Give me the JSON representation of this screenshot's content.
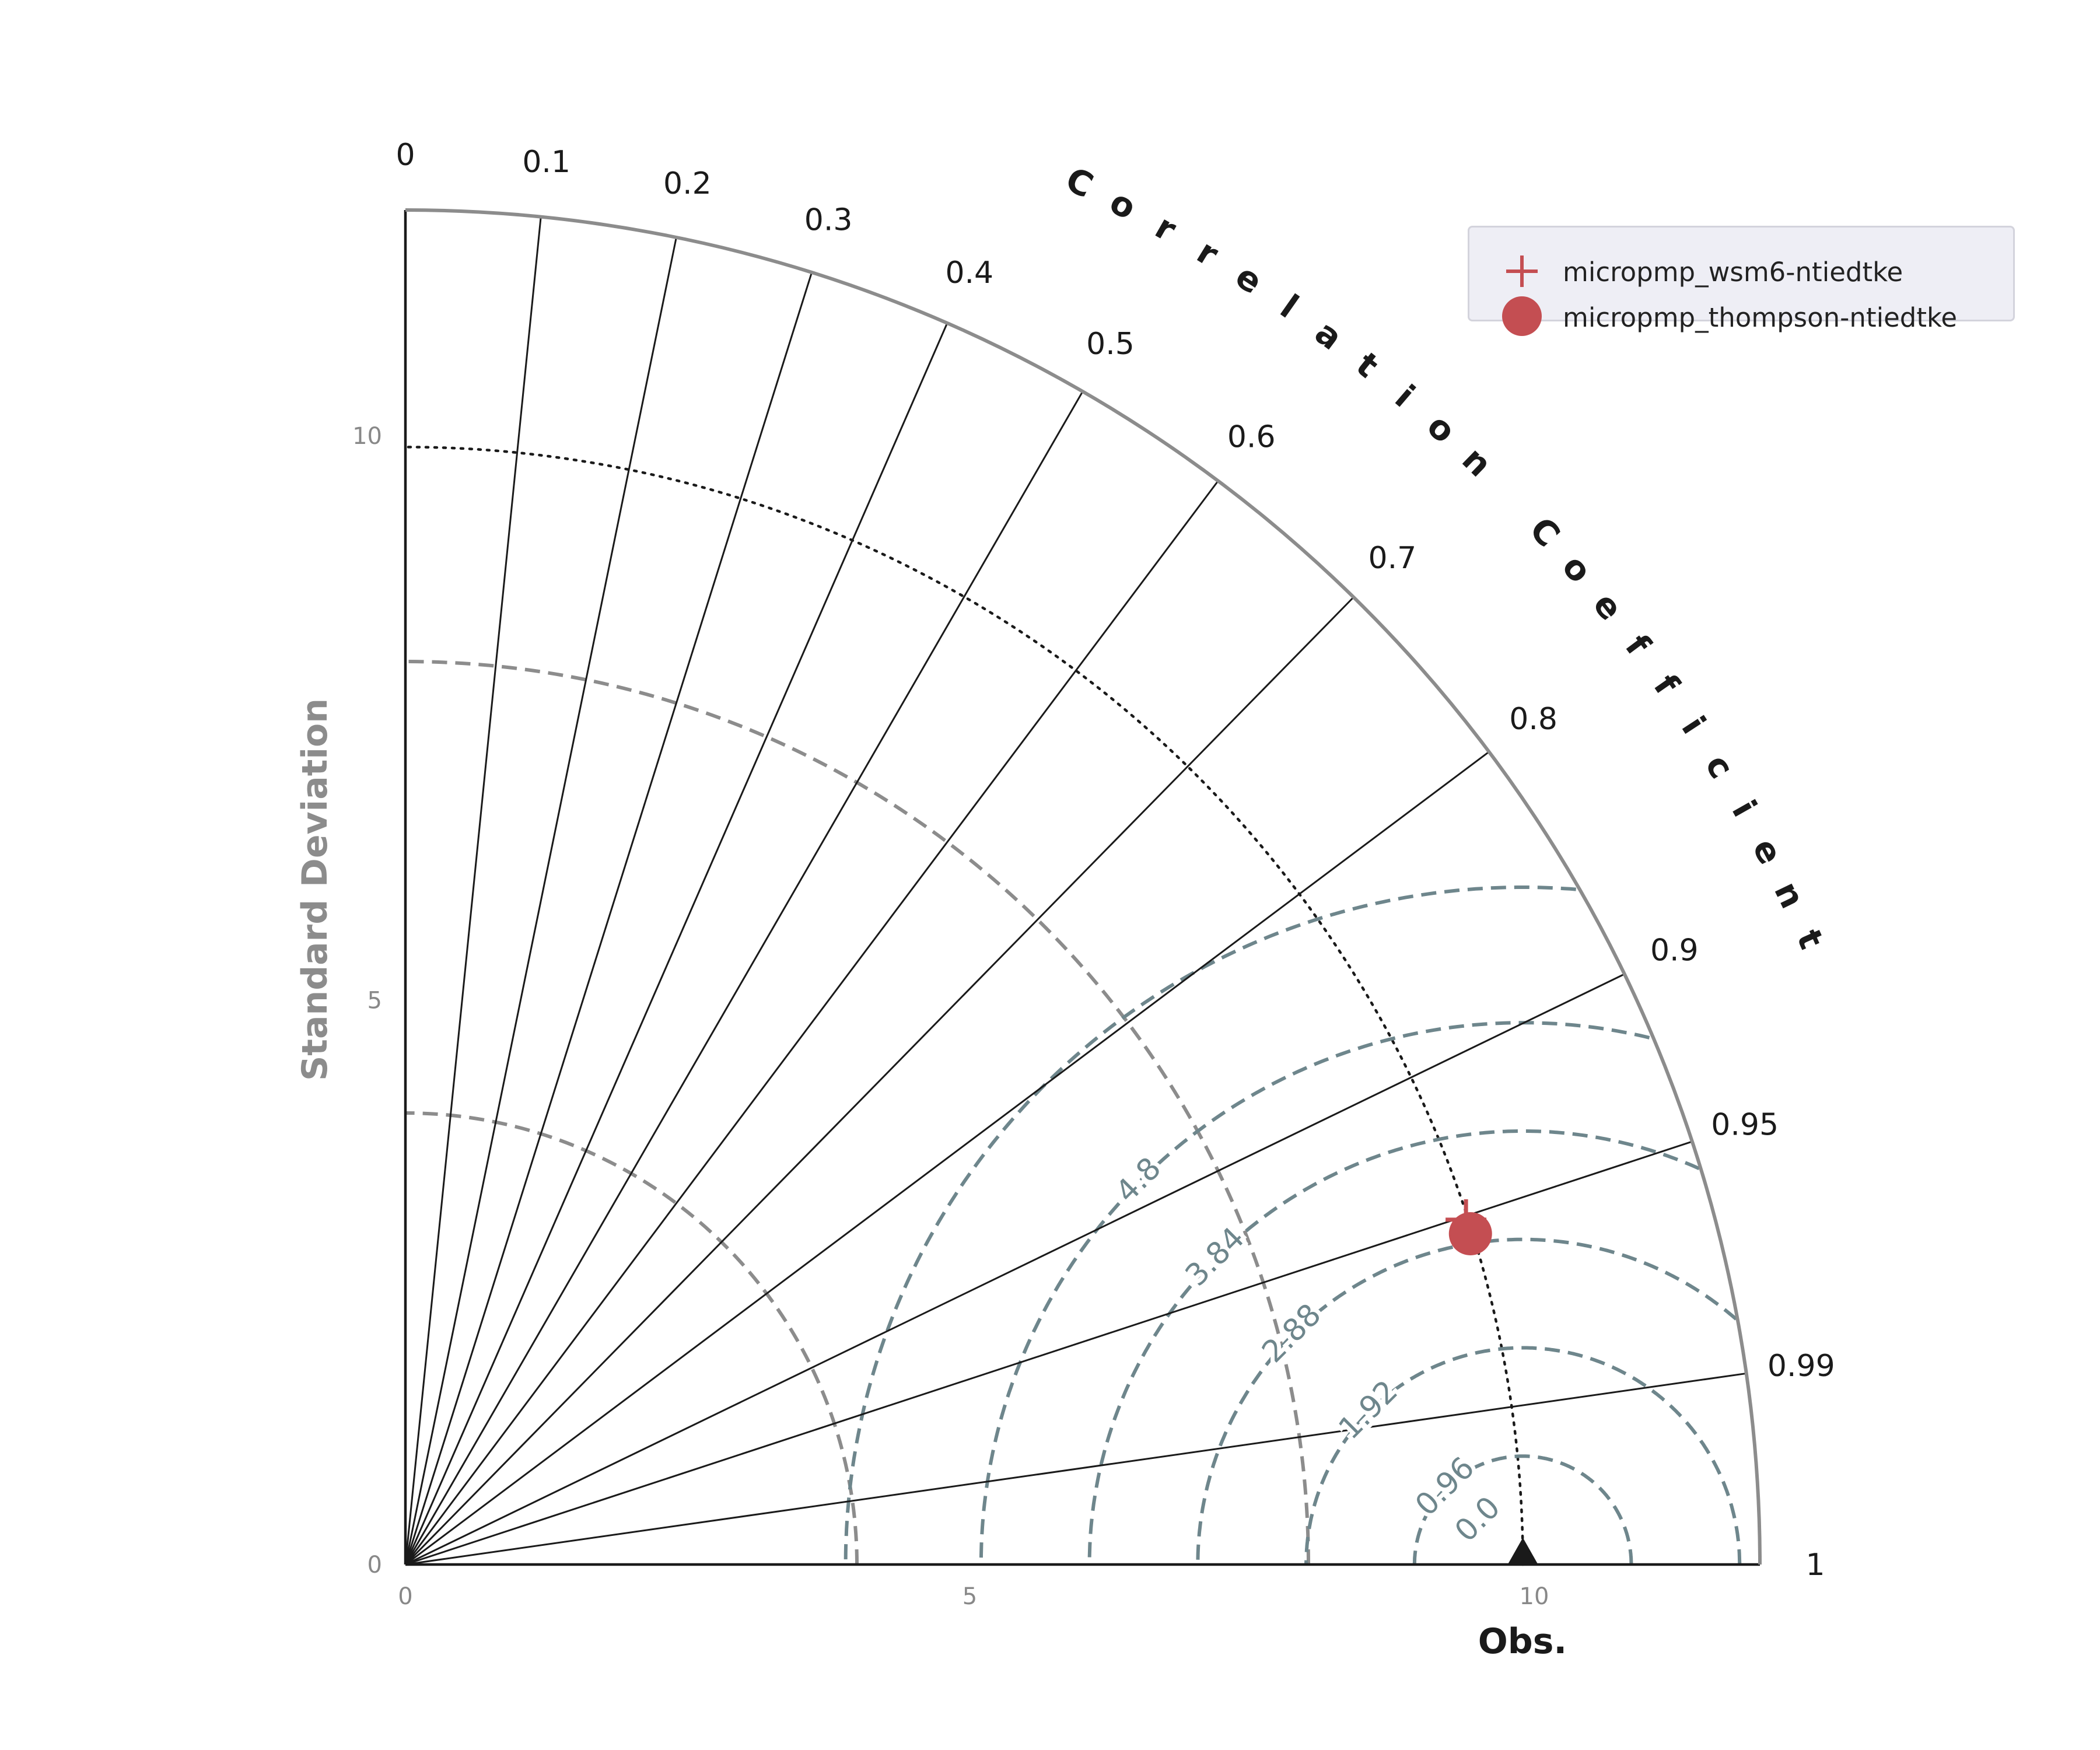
{
  "chart_data": {
    "type": "scatter",
    "subtype": "taylor-diagram",
    "xlabel": "Obs.",
    "ylabel": "Standard Deviation",
    "angular_label": "Correlation Coefficient",
    "reference": {
      "label": "Obs.",
      "std": 9.9,
      "marker": "triangle",
      "color": "#1a1a1a"
    },
    "std_range": [
      0,
      12
    ],
    "std_ticks": [
      0,
      5,
      10
    ],
    "std_tick_labels": [
      "0",
      "5",
      "10"
    ],
    "correlation_ticks": [
      0,
      0.1,
      0.2,
      0.3,
      0.4,
      0.5,
      0.6,
      0.7,
      0.8,
      0.9,
      0.95,
      0.99,
      1
    ],
    "correlation_tick_labels": [
      "0",
      "0.1",
      "0.2",
      "0.3",
      "0.4",
      "0.5",
      "0.6",
      "0.7",
      "0.8",
      "0.9",
      "0.95",
      "0.99",
      "1"
    ],
    "std_dashed_circles": [
      4,
      8
    ],
    "std_dotted_circle": 9.9,
    "rmsd_contours": [
      0.96,
      1.92,
      2.88,
      3.84,
      4.8,
      6.0
    ],
    "rmsd_labels": [
      {
        "value": 0.0,
        "text": "0.0"
      },
      {
        "value": 0.96,
        "text": "0.96"
      },
      {
        "value": 1.92,
        "text": "1.92"
      },
      {
        "value": 2.88,
        "text": "2.88"
      },
      {
        "value": 3.84,
        "text": "3.84"
      },
      {
        "value": 4.8,
        "text": "4.8"
      }
    ],
    "series": [
      {
        "name": "micropmp_wsm6-ntiedtke",
        "marker": "plus",
        "color": "#c44e52",
        "std": 9.88,
        "correlation": 0.951
      },
      {
        "name": "micropmp_thompson-ntiedtke",
        "marker": "circle",
        "color": "#c44e52",
        "std": 9.88,
        "correlation": 0.955
      }
    ],
    "legend_position": "top-right",
    "colors": {
      "axis": "#1a1a1a",
      "outer_arc": "#8c8c8c",
      "std_circle": "#8c8c8c",
      "rmsd": "#6e868c",
      "tick_label": "#888888",
      "series": "#c44e52"
    }
  }
}
